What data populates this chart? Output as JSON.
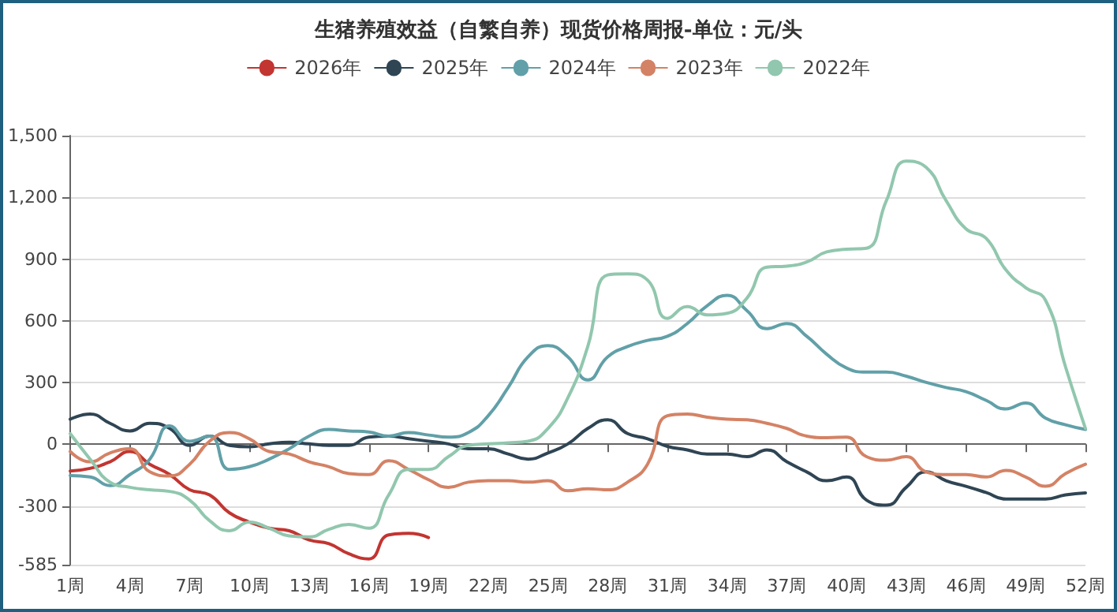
{
  "chart_data": {
    "type": "line",
    "title": "生猪养殖效益（自繁自养）现货价格周报-单位：元/头",
    "categories": [
      "1周",
      null,
      null,
      "4周",
      null,
      null,
      "7周",
      null,
      null,
      "10周",
      null,
      null,
      "13周",
      null,
      null,
      "16周",
      null,
      null,
      "19周",
      null,
      null,
      "22周",
      null,
      null,
      "25周",
      null,
      null,
      "28周",
      null,
      null,
      "31周",
      null,
      null,
      "34周",
      null,
      null,
      "37周",
      null,
      null,
      "40周",
      null,
      null,
      "43周",
      null,
      null,
      "46周",
      null,
      null,
      "49周",
      null,
      null,
      "52周"
    ],
    "series": [
      {
        "name": "2026年",
        "color": "#c23531",
        "values": [
          -130,
          -117,
          -85,
          -35,
          -97,
          -147,
          -221,
          -246,
          -333,
          -378,
          -408,
          -420,
          -465,
          -483,
          -532,
          -557,
          -440,
          -433,
          -453,
          null,
          null,
          null,
          null,
          null,
          null,
          null,
          null,
          null,
          null,
          null,
          null,
          null,
          null,
          null,
          null,
          null,
          null,
          null,
          null,
          null,
          null,
          null,
          null,
          null,
          null,
          null,
          null,
          null,
          null,
          null,
          null,
          null
        ]
      },
      {
        "name": "2025年",
        "color": "#2f4554",
        "values": [
          122,
          147,
          102,
          65,
          102,
          77,
          -5,
          40,
          -5,
          -12,
          2,
          10,
          2,
          -5,
          -5,
          35,
          40,
          27,
          15,
          2,
          -22,
          -22,
          -47,
          -72,
          -42,
          2,
          77,
          119,
          52,
          27,
          -10,
          -27,
          -47,
          -47,
          -60,
          -27,
          -85,
          -134,
          -177,
          -159,
          -271,
          -296,
          -209,
          -134,
          -177,
          -204,
          -234,
          -266,
          -266,
          -266,
          -246,
          -236
        ]
      },
      {
        "name": "2024年",
        "color": "#61a0a8",
        "values": [
          -152,
          -159,
          -201,
          -147,
          -72,
          90,
          15,
          40,
          -122,
          -109,
          -72,
          -22,
          40,
          72,
          65,
          60,
          40,
          57,
          45,
          35,
          57,
          139,
          276,
          425,
          480,
          425,
          313,
          425,
          475,
          505,
          525,
          587,
          674,
          724,
          649,
          562,
          587,
          525,
          438,
          371,
          351,
          351,
          331,
          301,
          276,
          256,
          214,
          172,
          201,
          127,
          95,
          72
        ]
      },
      {
        "name": "2023年",
        "color": "#d48265",
        "values": [
          -35,
          -85,
          -42,
          -22,
          -134,
          -154,
          -97,
          15,
          57,
          27,
          -35,
          -47,
          -85,
          -109,
          -142,
          -147,
          -80,
          -122,
          -172,
          -209,
          -184,
          -177,
          -177,
          -184,
          -177,
          -226,
          -216,
          -221,
          -184,
          -97,
          139,
          147,
          132,
          122,
          119,
          102,
          77,
          40,
          32,
          35,
          -60,
          -77,
          -60,
          -134,
          -147,
          -147,
          -159,
          -127,
          -159,
          -204,
          -142,
          -97
        ]
      },
      {
        "name": "2022年",
        "color": "#91c7ae",
        "values": [
          52,
          -72,
          -184,
          -209,
          -221,
          -229,
          -271,
          -371,
          -420,
          -378,
          -408,
          -445,
          -450,
          -413,
          -390,
          -408,
          -246,
          -122,
          -122,
          -60,
          -5,
          2,
          7,
          15,
          77,
          226,
          475,
          823,
          828,
          798,
          612,
          669,
          629,
          637,
          711,
          861,
          866,
          886,
          935,
          948,
          953,
          1184,
          1376,
          1346,
          1184,
          1047,
          1002,
          848,
          761,
          699,
          376,
          77
        ]
      }
    ],
    "ylim": [
      -585,
      1500
    ],
    "yticks": [
      -585,
      -300,
      0,
      300,
      600,
      900,
      {
        "value": 1200,
        "label": "1,200"
      },
      {
        "value": 1500,
        "label": "1,500"
      }
    ],
    "grid": "y",
    "legend": "top",
    "marker": "none",
    "line_style": "solid"
  }
}
